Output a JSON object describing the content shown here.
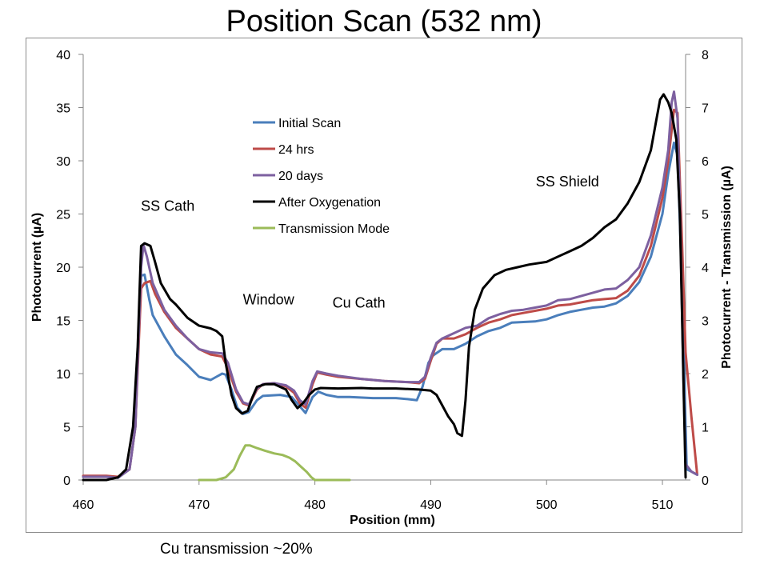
{
  "slide": {
    "title": "Position Scan (532 nm)",
    "footnote": "Cu transmission ~20%"
  },
  "chart_data": {
    "type": "line",
    "title": "",
    "xlabel": "Position (mm)",
    "ylabel": "Photocurrent (µA)",
    "y2label": "Photocurrent - Transmission (µA)",
    "xlim": [
      460,
      512
    ],
    "ylim": [
      0,
      40
    ],
    "y2lim": [
      0,
      8
    ],
    "xticks": [
      460,
      470,
      480,
      490,
      500,
      510
    ],
    "yticks": [
      0,
      5,
      10,
      15,
      20,
      25,
      30,
      35,
      40
    ],
    "y2ticks": [
      0,
      1,
      2,
      3,
      4,
      5,
      6,
      7,
      8
    ],
    "grid": false,
    "legend_position": "upper-center",
    "annotations": [
      {
        "text": "SS Cath",
        "x": 467.3,
        "y": 25.3
      },
      {
        "text": "Window",
        "x": 476.0,
        "y": 16.5
      },
      {
        "text": "Cu Cath",
        "x": 483.8,
        "y": 16.2
      },
      {
        "text": "SS Shield",
        "x": 501.8,
        "y": 27.6
      }
    ],
    "series": [
      {
        "name": "Initial Scan",
        "color": "#4a7ebb",
        "axis": "left",
        "points": [
          [
            460,
            0.3
          ],
          [
            462,
            0.3
          ],
          [
            463,
            0.2
          ],
          [
            464,
            1
          ],
          [
            464.5,
            5
          ],
          [
            464.8,
            14
          ],
          [
            465,
            19.2
          ],
          [
            465.3,
            19.3
          ],
          [
            465.7,
            17
          ],
          [
            466,
            15.5
          ],
          [
            467,
            13.5
          ],
          [
            468,
            11.8
          ],
          [
            469,
            10.8
          ],
          [
            470,
            9.7
          ],
          [
            471,
            9.4
          ],
          [
            471.5,
            9.7
          ],
          [
            472,
            10
          ],
          [
            472.3,
            9.9
          ],
          [
            472.8,
            8.5
          ],
          [
            473.3,
            6.8
          ],
          [
            473.8,
            6.2
          ],
          [
            474.3,
            6.4
          ],
          [
            475,
            7.5
          ],
          [
            475.5,
            7.9
          ],
          [
            477,
            8
          ],
          [
            478,
            7.8
          ],
          [
            478.8,
            6.8
          ],
          [
            479.2,
            6.3
          ],
          [
            479.8,
            7.8
          ],
          [
            480.3,
            8.3
          ],
          [
            481,
            8
          ],
          [
            482,
            7.8
          ],
          [
            483,
            7.8
          ],
          [
            485,
            7.7
          ],
          [
            487,
            7.7
          ],
          [
            488,
            7.6
          ],
          [
            488.8,
            7.5
          ],
          [
            489.3,
            8.8
          ],
          [
            489.8,
            11
          ],
          [
            490.2,
            11.7
          ],
          [
            491,
            12.3
          ],
          [
            492,
            12.3
          ],
          [
            493,
            12.8
          ],
          [
            494,
            13.5
          ],
          [
            495,
            14
          ],
          [
            496,
            14.3
          ],
          [
            497,
            14.8
          ],
          [
            499,
            14.9
          ],
          [
            500,
            15.1
          ],
          [
            501,
            15.5
          ],
          [
            502,
            15.8
          ],
          [
            503,
            16
          ],
          [
            504,
            16.2
          ],
          [
            505,
            16.3
          ],
          [
            506,
            16.6
          ],
          [
            507,
            17.3
          ],
          [
            508,
            18.6
          ],
          [
            509,
            21
          ],
          [
            510,
            25
          ],
          [
            510.5,
            28.8
          ],
          [
            511,
            31.7
          ],
          [
            511.3,
            30.5
          ],
          [
            511.7,
            18
          ],
          [
            512,
            5
          ],
          [
            512.1,
            1
          ],
          [
            512.5,
            0.8
          ],
          [
            513,
            0.5
          ]
        ]
      },
      {
        "name": "24 hrs",
        "color": "#be4b48",
        "axis": "left",
        "points": [
          [
            460,
            0.4
          ],
          [
            462,
            0.4
          ],
          [
            463,
            0.3
          ],
          [
            464,
            1
          ],
          [
            464.5,
            5
          ],
          [
            464.8,
            13
          ],
          [
            465,
            18
          ],
          [
            465.3,
            18.5
          ],
          [
            465.8,
            18.7
          ],
          [
            466.2,
            17.5
          ],
          [
            467,
            15.8
          ],
          [
            468,
            14.3
          ],
          [
            469,
            13.3
          ],
          [
            470,
            12.3
          ],
          [
            471,
            11.8
          ],
          [
            472,
            11.6
          ],
          [
            472.5,
            10.5
          ],
          [
            473.2,
            8.3
          ],
          [
            473.8,
            7.2
          ],
          [
            474.3,
            7
          ],
          [
            475,
            8.5
          ],
          [
            475.5,
            9
          ],
          [
            476.5,
            9.1
          ],
          [
            477.5,
            8.8
          ],
          [
            478.2,
            8.2
          ],
          [
            478.7,
            7.2
          ],
          [
            479.2,
            6.8
          ],
          [
            479.8,
            9
          ],
          [
            480.2,
            10.1
          ],
          [
            481,
            9.9
          ],
          [
            482,
            9.7
          ],
          [
            484,
            9.5
          ],
          [
            486,
            9.3
          ],
          [
            488,
            9.2
          ],
          [
            489,
            9.1
          ],
          [
            489.5,
            9.5
          ],
          [
            490,
            11.2
          ],
          [
            490.5,
            12.8
          ],
          [
            491,
            13.3
          ],
          [
            492,
            13.3
          ],
          [
            493,
            13.7
          ],
          [
            494,
            14.3
          ],
          [
            495,
            14.8
          ],
          [
            496,
            15.1
          ],
          [
            497,
            15.5
          ],
          [
            498,
            15.7
          ],
          [
            499,
            15.9
          ],
          [
            500,
            16.1
          ],
          [
            501,
            16.4
          ],
          [
            502,
            16.5
          ],
          [
            503,
            16.7
          ],
          [
            504,
            16.9
          ],
          [
            505,
            17
          ],
          [
            506,
            17.1
          ],
          [
            507,
            17.8
          ],
          [
            508,
            19.2
          ],
          [
            509,
            22
          ],
          [
            510,
            26.5
          ],
          [
            510.5,
            30
          ],
          [
            511,
            34.8
          ],
          [
            511.3,
            34.5
          ],
          [
            511.7,
            22
          ],
          [
            512,
            12
          ],
          [
            512.5,
            6
          ],
          [
            513,
            0.5
          ]
        ]
      },
      {
        "name": "20 days",
        "color": "#7d60a0",
        "axis": "left",
        "points": [
          [
            460,
            0.3
          ],
          [
            462,
            0.3
          ],
          [
            463,
            0.2
          ],
          [
            464,
            1
          ],
          [
            464.5,
            5
          ],
          [
            464.8,
            14
          ],
          [
            465,
            20
          ],
          [
            465.2,
            22.1
          ],
          [
            465.5,
            21
          ],
          [
            466,
            18.5
          ],
          [
            467,
            16
          ],
          [
            468,
            14.5
          ],
          [
            469,
            13.3
          ],
          [
            470,
            12.3
          ],
          [
            471,
            12
          ],
          [
            472,
            11.9
          ],
          [
            472.5,
            11
          ],
          [
            473.2,
            8.5
          ],
          [
            473.8,
            7.3
          ],
          [
            474.3,
            7.1
          ],
          [
            475,
            8.6
          ],
          [
            475.5,
            9
          ],
          [
            476.5,
            9.1
          ],
          [
            477.5,
            8.9
          ],
          [
            478.2,
            8.4
          ],
          [
            478.7,
            7.5
          ],
          [
            479.2,
            7.1
          ],
          [
            479.8,
            9.3
          ],
          [
            480.2,
            10.2
          ],
          [
            481,
            10
          ],
          [
            482,
            9.8
          ],
          [
            484,
            9.5
          ],
          [
            486,
            9.3
          ],
          [
            488,
            9.2
          ],
          [
            489,
            9.2
          ],
          [
            489.5,
            9.7
          ],
          [
            490,
            11.5
          ],
          [
            490.5,
            12.9
          ],
          [
            491,
            13.3
          ],
          [
            492,
            13.8
          ],
          [
            493,
            14.3
          ],
          [
            494,
            14.5
          ],
          [
            495,
            15.2
          ],
          [
            496,
            15.6
          ],
          [
            497,
            15.9
          ],
          [
            498,
            16
          ],
          [
            499,
            16.2
          ],
          [
            500,
            16.4
          ],
          [
            501,
            16.9
          ],
          [
            502,
            17
          ],
          [
            503,
            17.3
          ],
          [
            504,
            17.6
          ],
          [
            505,
            17.9
          ],
          [
            506,
            18
          ],
          [
            507,
            18.8
          ],
          [
            508,
            20
          ],
          [
            509,
            23
          ],
          [
            510,
            27.5
          ],
          [
            510.5,
            31
          ],
          [
            510.8,
            35.5
          ],
          [
            511,
            36.5
          ],
          [
            511.3,
            34
          ],
          [
            511.5,
            26
          ],
          [
            511.8,
            10
          ],
          [
            512,
            1.5
          ],
          [
            512.5,
            0.8
          ],
          [
            513,
            0.5
          ]
        ]
      },
      {
        "name": "After Oxygenation",
        "color": "#000000",
        "axis": "right",
        "points": [
          [
            460,
            0
          ],
          [
            461,
            0
          ],
          [
            462,
            0
          ],
          [
            463,
            0.05
          ],
          [
            463.7,
            0.2
          ],
          [
            464.3,
            1
          ],
          [
            464.7,
            2.5
          ],
          [
            465,
            4.4
          ],
          [
            465.3,
            4.45
          ],
          [
            465.8,
            4.4
          ],
          [
            466.2,
            4.1
          ],
          [
            466.7,
            3.7
          ],
          [
            467.5,
            3.4
          ],
          [
            468,
            3.3
          ],
          [
            469,
            3.05
          ],
          [
            470,
            2.9
          ],
          [
            471,
            2.85
          ],
          [
            471.5,
            2.8
          ],
          [
            472,
            2.7
          ],
          [
            472.3,
            2.2
          ],
          [
            472.8,
            1.6
          ],
          [
            473.2,
            1.35
          ],
          [
            473.7,
            1.25
          ],
          [
            474.2,
            1.3
          ],
          [
            474.6,
            1.55
          ],
          [
            475,
            1.75
          ],
          [
            475.7,
            1.8
          ],
          [
            476.5,
            1.8
          ],
          [
            477.5,
            1.7
          ],
          [
            478,
            1.5
          ],
          [
            478.5,
            1.35
          ],
          [
            479,
            1.45
          ],
          [
            479.5,
            1.6
          ],
          [
            480,
            1.7
          ],
          [
            480.5,
            1.73
          ],
          [
            482,
            1.72
          ],
          [
            484,
            1.73
          ],
          [
            485,
            1.72
          ],
          [
            487,
            1.72
          ],
          [
            489,
            1.7
          ],
          [
            490,
            1.68
          ],
          [
            490.5,
            1.6
          ],
          [
            491,
            1.4
          ],
          [
            491.5,
            1.2
          ],
          [
            492,
            1.05
          ],
          [
            492.3,
            0.88
          ],
          [
            492.7,
            0.83
          ],
          [
            493,
            1.5
          ],
          [
            493.3,
            2.5
          ],
          [
            493.8,
            3.2
          ],
          [
            494.5,
            3.6
          ],
          [
            495.5,
            3.85
          ],
          [
            496.5,
            3.95
          ],
          [
            497.5,
            4
          ],
          [
            498.5,
            4.05
          ],
          [
            500,
            4.1
          ],
          [
            501,
            4.2
          ],
          [
            502,
            4.3
          ],
          [
            503,
            4.4
          ],
          [
            504,
            4.55
          ],
          [
            505,
            4.75
          ],
          [
            506,
            4.9
          ],
          [
            507,
            5.2
          ],
          [
            508,
            5.6
          ],
          [
            509,
            6.2
          ],
          [
            509.5,
            6.8
          ],
          [
            509.8,
            7.15
          ],
          [
            510.1,
            7.25
          ],
          [
            510.5,
            7.1
          ],
          [
            510.8,
            6.9
          ],
          [
            511.2,
            6.4
          ],
          [
            511.5,
            5
          ],
          [
            511.7,
            3
          ],
          [
            511.9,
            1
          ],
          [
            512,
            0.05
          ]
        ]
      },
      {
        "name": "Transmission Mode",
        "color": "#9bbb59",
        "axis": "right",
        "points": [
          [
            470,
            0
          ],
          [
            471.5,
            0
          ],
          [
            472.3,
            0.05
          ],
          [
            473,
            0.2
          ],
          [
            473.5,
            0.45
          ],
          [
            474,
            0.65
          ],
          [
            474.4,
            0.65
          ],
          [
            475,
            0.6
          ],
          [
            475.7,
            0.55
          ],
          [
            476.5,
            0.5
          ],
          [
            477.2,
            0.47
          ],
          [
            477.8,
            0.42
          ],
          [
            478.3,
            0.35
          ],
          [
            478.8,
            0.25
          ],
          [
            479.3,
            0.15
          ],
          [
            479.7,
            0.05
          ],
          [
            480,
            0
          ],
          [
            481,
            0
          ],
          [
            483,
            0
          ]
        ]
      }
    ]
  }
}
